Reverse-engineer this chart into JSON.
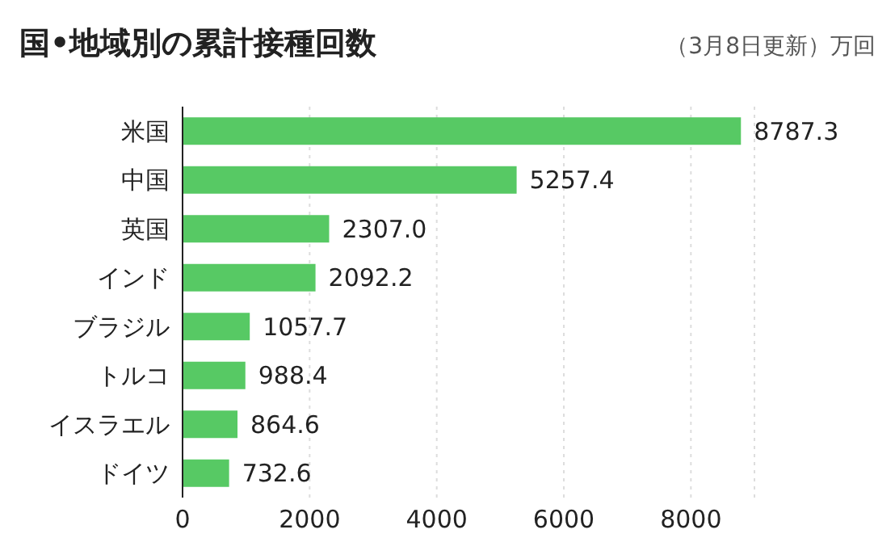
{
  "chart_data": {
    "type": "bar",
    "orientation": "horizontal",
    "title": "国•地域別の累計接種回数",
    "subtitle": "（3月8日更新）万回",
    "categories": [
      "米国",
      "中国",
      "英国",
      "インド",
      "ブラジル",
      "トルコ",
      "イスラエル",
      "ドイツ"
    ],
    "values": [
      8787.3,
      5257.4,
      2307.0,
      2092.2,
      1057.7,
      988.4,
      864.6,
      732.6
    ],
    "value_labels": [
      "8787.3",
      "5257.4",
      "2307.0",
      "2092.2",
      "1057.7",
      "988.4",
      "864.6",
      "732.6"
    ],
    "color": "#57c964",
    "xlim": [
      0,
      9000
    ],
    "xticks": [
      0,
      2000,
      4000,
      6000,
      8000
    ],
    "grid": "x"
  }
}
